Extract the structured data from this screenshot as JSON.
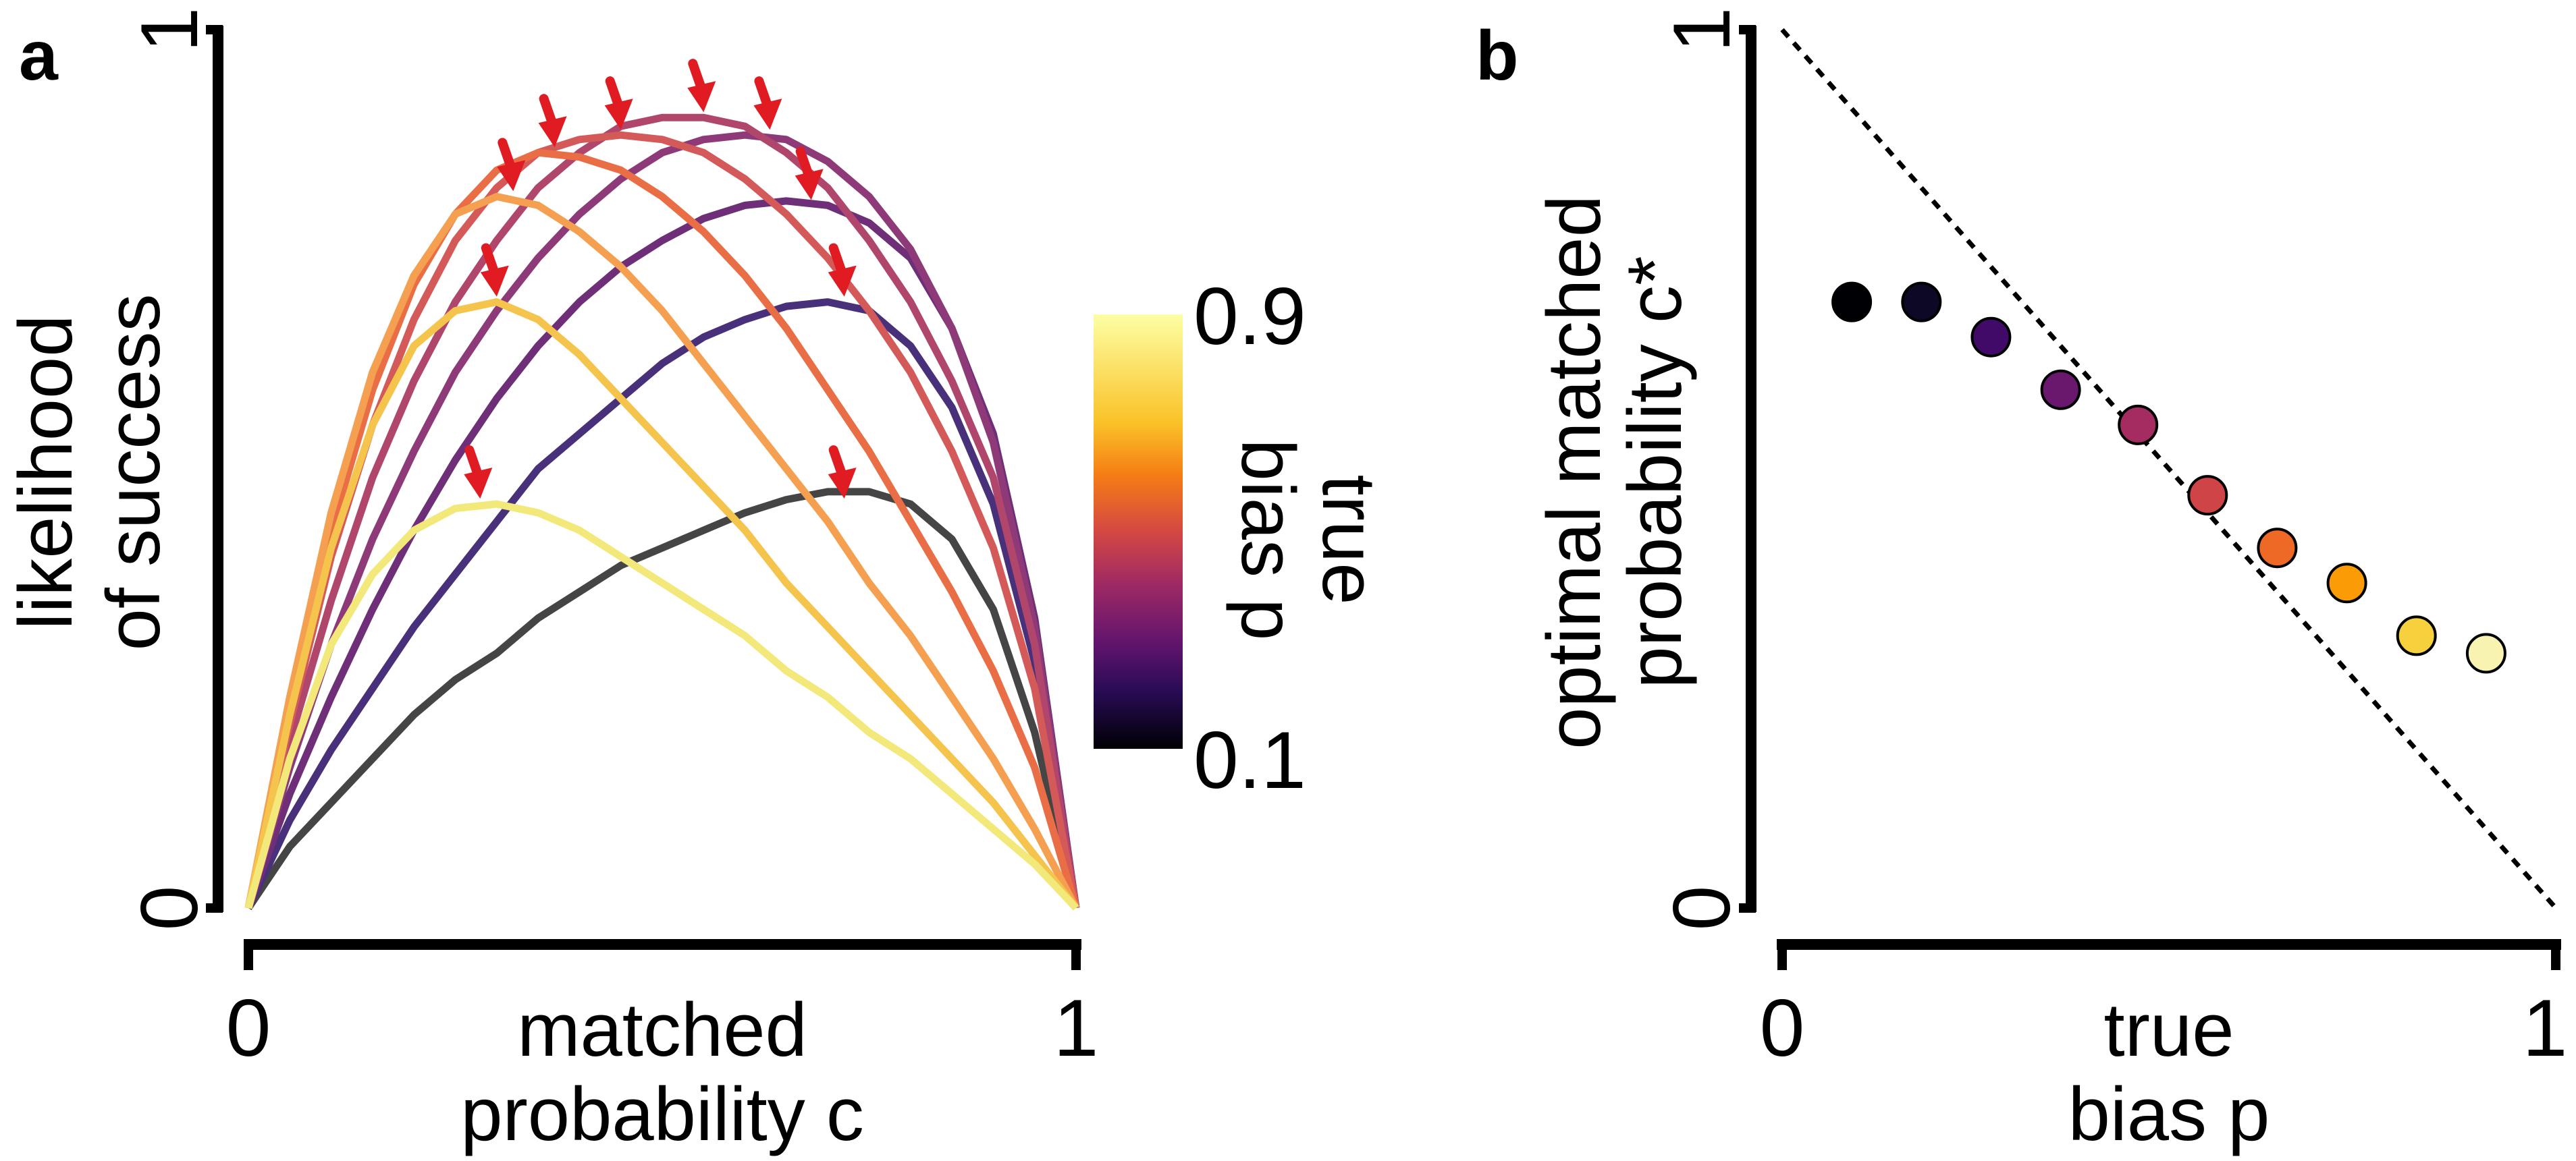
{
  "chart_data": [
    {
      "panel_label": "a",
      "type": "line",
      "xlabel": [
        "matched",
        "probability c"
      ],
      "ylabel": [
        "likelihood",
        "of success"
      ],
      "xlim": [
        0,
        1
      ],
      "ylim": [
        0,
        1
      ],
      "x_ticks": [
        "0",
        "1"
      ],
      "y_ticks": [
        "0",
        "1"
      ],
      "grid": false,
      "colorbar": {
        "label": [
          "true",
          "bias p"
        ],
        "min_label": "0.1",
        "max_label": "0.9",
        "colormap": "inferno"
      },
      "x": [
        0,
        0.05,
        0.1,
        0.15,
        0.2,
        0.25,
        0.3,
        0.35,
        0.4,
        0.45,
        0.5,
        0.55,
        0.6,
        0.65,
        0.7,
        0.75,
        0.8,
        0.85,
        0.9,
        0.95,
        1
      ],
      "series": [
        {
          "p": 0.1,
          "color": "#454545",
          "peak": [
            0.72,
            0.46
          ],
          "values": [
            0,
            0.07,
            0.12,
            0.17,
            0.22,
            0.26,
            0.29,
            0.33,
            0.36,
            0.39,
            0.41,
            0.43,
            0.45,
            0.465,
            0.474,
            0.474,
            0.46,
            0.42,
            0.34,
            0.2,
            0
          ]
        },
        {
          "p": 0.2,
          "color": "#48307a",
          "peak": [
            0.72,
            0.69
          ],
          "values": [
            0,
            0.1,
            0.18,
            0.25,
            0.32,
            0.38,
            0.44,
            0.5,
            0.54,
            0.58,
            0.62,
            0.65,
            0.67,
            0.685,
            0.69,
            0.68,
            0.64,
            0.57,
            0.46,
            0.28,
            0
          ]
        },
        {
          "p": 0.3,
          "color": "#6e2f78",
          "peak": [
            0.68,
            0.8
          ],
          "values": [
            0,
            0.13,
            0.24,
            0.34,
            0.43,
            0.51,
            0.58,
            0.64,
            0.69,
            0.73,
            0.76,
            0.785,
            0.8,
            0.805,
            0.8,
            0.78,
            0.74,
            0.66,
            0.54,
            0.33,
            0
          ]
        },
        {
          "p": 0.4,
          "color": "#8e3a78",
          "peak": [
            0.63,
            0.88
          ],
          "values": [
            0,
            0.16,
            0.3,
            0.42,
            0.52,
            0.61,
            0.68,
            0.74,
            0.79,
            0.83,
            0.86,
            0.875,
            0.88,
            0.875,
            0.85,
            0.81,
            0.75,
            0.66,
            0.53,
            0.32,
            0
          ]
        },
        {
          "p": 0.5,
          "color": "#b1466c",
          "peak": [
            0.55,
            0.9
          ],
          "values": [
            0,
            0.19,
            0.35,
            0.49,
            0.6,
            0.69,
            0.76,
            0.82,
            0.86,
            0.89,
            0.9,
            0.9,
            0.89,
            0.86,
            0.82,
            0.76,
            0.69,
            0.6,
            0.49,
            0.3,
            0
          ]
        },
        {
          "p": 0.6,
          "color": "#d45a5a",
          "peak": [
            0.45,
            0.88
          ],
          "values": [
            0,
            0.21,
            0.4,
            0.55,
            0.67,
            0.76,
            0.82,
            0.86,
            0.875,
            0.88,
            0.875,
            0.86,
            0.83,
            0.79,
            0.74,
            0.68,
            0.61,
            0.52,
            0.41,
            0.25,
            0
          ]
        },
        {
          "p": 0.7,
          "color": "#ea6e45",
          "peak": [
            0.37,
            0.86
          ],
          "values": [
            0,
            0.23,
            0.43,
            0.59,
            0.71,
            0.79,
            0.84,
            0.86,
            0.855,
            0.84,
            0.81,
            0.77,
            0.72,
            0.66,
            0.59,
            0.52,
            0.44,
            0.36,
            0.27,
            0.16,
            0
          ]
        },
        {
          "p": 0.8,
          "color": "#f4a050",
          "peak": [
            0.32,
            0.81
          ],
          "values": [
            0,
            0.24,
            0.45,
            0.61,
            0.72,
            0.79,
            0.81,
            0.8,
            0.77,
            0.73,
            0.68,
            0.62,
            0.56,
            0.5,
            0.44,
            0.37,
            0.31,
            0.24,
            0.17,
            0.09,
            0
          ]
        },
        {
          "p": 0.85,
          "color": "#f5c44c",
          "peak": [
            0.3,
            0.69
          ],
          "values": [
            0,
            0.22,
            0.41,
            0.55,
            0.64,
            0.68,
            0.69,
            0.67,
            0.63,
            0.58,
            0.53,
            0.48,
            0.43,
            0.37,
            0.32,
            0.27,
            0.22,
            0.17,
            0.12,
            0.06,
            0
          ]
        },
        {
          "p": 0.9,
          "color": "#f3e87a",
          "peak": [
            0.28,
            0.46
          ],
          "values": [
            0,
            0.17,
            0.3,
            0.38,
            0.43,
            0.455,
            0.46,
            0.45,
            0.43,
            0.4,
            0.37,
            0.34,
            0.31,
            0.27,
            0.24,
            0.2,
            0.17,
            0.13,
            0.09,
            0.05,
            0
          ]
        }
      ]
    },
    {
      "panel_label": "b",
      "type": "scatter",
      "xlabel": [
        "true",
        "bias p"
      ],
      "ylabel": [
        "optimal matched",
        "probability c*"
      ],
      "xlim": [
        0,
        1
      ],
      "ylim": [
        0,
        1
      ],
      "x_ticks": [
        "0",
        "1"
      ],
      "y_ticks": [
        "0",
        "1"
      ],
      "grid": false,
      "reference_line": {
        "style": "dotted",
        "from": [
          0,
          1
        ],
        "to": [
          1,
          0
        ]
      },
      "points": [
        {
          "x": 0.09,
          "y": 0.69,
          "color": "#000004"
        },
        {
          "x": 0.18,
          "y": 0.69,
          "color": "#0c0826"
        },
        {
          "x": 0.27,
          "y": 0.65,
          "color": "#420a68"
        },
        {
          "x": 0.36,
          "y": 0.59,
          "color": "#6a176e"
        },
        {
          "x": 0.46,
          "y": 0.55,
          "color": "#a52c60"
        },
        {
          "x": 0.55,
          "y": 0.47,
          "color": "#cf4446"
        },
        {
          "x": 0.64,
          "y": 0.41,
          "color": "#ed6925"
        },
        {
          "x": 0.73,
          "y": 0.37,
          "color": "#fb9b06"
        },
        {
          "x": 0.82,
          "y": 0.31,
          "color": "#f7d13d"
        },
        {
          "x": 0.91,
          "y": 0.29,
          "color": "#f8f3b0"
        }
      ]
    }
  ]
}
